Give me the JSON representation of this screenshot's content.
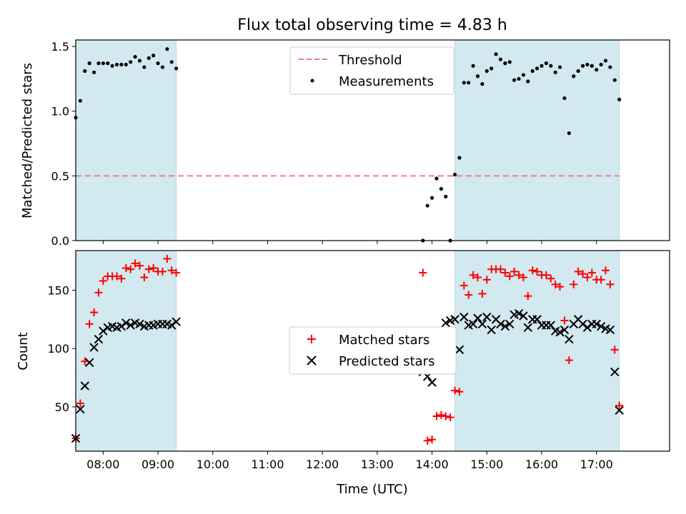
{
  "chart_data": {
    "title": "Flux total observing time = 4.83 h",
    "xlabel": "Time (UTC)",
    "x_ticks": [
      "08:00",
      "09:00",
      "10:00",
      "11:00",
      "12:00",
      "13:00",
      "14:00",
      "15:00",
      "16:00",
      "17:00"
    ],
    "x_range": [
      "07:30",
      "18:20"
    ],
    "shaded_intervals": [
      [
        "07:30",
        "09:20"
      ],
      [
        "14:25",
        "17:25"
      ]
    ],
    "shade_color": "#d2e9ef",
    "panels": [
      {
        "type": "scatter",
        "ylabel": "Matched/Predicted stars",
        "ylim": [
          0,
          1.55
        ],
        "y_ticks": [
          "0.0",
          "0.5",
          "1.0",
          "1.5"
        ],
        "legend_position": "top-center",
        "threshold": {
          "name": "Threshold",
          "value": 0.5,
          "range": [
            "07:30",
            "17:25"
          ],
          "color": "#f08080"
        },
        "series": [
          {
            "name": "Measurements",
            "color": "#000000",
            "marker": "dot",
            "points": [
              [
                "07:30",
                0.95
              ],
              [
                "07:35",
                1.08
              ],
              [
                "07:40",
                1.31
              ],
              [
                "07:45",
                1.37
              ],
              [
                "07:50",
                1.3
              ],
              [
                "07:55",
                1.37
              ],
              [
                "08:00",
                1.37
              ],
              [
                "08:05",
                1.37
              ],
              [
                "08:10",
                1.35
              ],
              [
                "08:15",
                1.36
              ],
              [
                "08:20",
                1.36
              ],
              [
                "08:25",
                1.36
              ],
              [
                "08:30",
                1.38
              ],
              [
                "08:35",
                1.42
              ],
              [
                "08:40",
                1.39
              ],
              [
                "08:45",
                1.34
              ],
              [
                "08:50",
                1.41
              ],
              [
                "08:55",
                1.43
              ],
              [
                "09:00",
                1.37
              ],
              [
                "09:05",
                1.34
              ],
              [
                "09:10",
                1.48
              ],
              [
                "09:15",
                1.38
              ],
              [
                "09:20",
                1.33
              ],
              [
                "13:50",
                0.0
              ],
              [
                "13:55",
                0.27
              ],
              [
                "14:00",
                0.33
              ],
              [
                "14:05",
                0.48
              ],
              [
                "14:10",
                0.4
              ],
              [
                "14:15",
                0.34
              ],
              [
                "14:20",
                0.0
              ],
              [
                "14:25",
                0.51
              ],
              [
                "14:30",
                0.64
              ],
              [
                "14:35",
                1.22
              ],
              [
                "14:40",
                1.22
              ],
              [
                "14:45",
                1.35
              ],
              [
                "14:50",
                1.27
              ],
              [
                "14:55",
                1.21
              ],
              [
                "15:00",
                1.31
              ],
              [
                "15:05",
                1.33
              ],
              [
                "15:10",
                1.44
              ],
              [
                "15:15",
                1.4
              ],
              [
                "15:20",
                1.37
              ],
              [
                "15:25",
                1.38
              ],
              [
                "15:30",
                1.24
              ],
              [
                "15:35",
                1.25
              ],
              [
                "15:40",
                1.28
              ],
              [
                "15:45",
                1.23
              ],
              [
                "15:50",
                1.31
              ],
              [
                "15:55",
                1.33
              ],
              [
                "16:00",
                1.35
              ],
              [
                "16:05",
                1.37
              ],
              [
                "16:10",
                1.35
              ],
              [
                "16:15",
                1.3
              ],
              [
                "16:20",
                1.34
              ],
              [
                "16:25",
                1.1
              ],
              [
                "16:30",
                0.83
              ],
              [
                "16:35",
                1.27
              ],
              [
                "16:40",
                1.31
              ],
              [
                "16:45",
                1.35
              ],
              [
                "16:50",
                1.36
              ],
              [
                "16:55",
                1.35
              ],
              [
                "17:00",
                1.32
              ],
              [
                "17:05",
                1.36
              ],
              [
                "17:10",
                1.39
              ],
              [
                "17:15",
                1.34
              ],
              [
                "17:20",
                1.24
              ],
              [
                "17:25",
                1.09
              ]
            ]
          }
        ]
      },
      {
        "type": "scatter",
        "ylabel": "Count",
        "ylim": [
          12,
          184
        ],
        "y_ticks": [
          "50",
          "100",
          "150"
        ],
        "legend_position": "center",
        "series": [
          {
            "name": "Matched stars",
            "color": "#ff0000",
            "marker": "plus",
            "points": [
              [
                "07:30",
                23
              ],
              [
                "07:35",
                53
              ],
              [
                "07:40",
                89
              ],
              [
                "07:45",
                121
              ],
              [
                "07:50",
                131
              ],
              [
                "07:55",
                148
              ],
              [
                "08:00",
                158
              ],
              [
                "08:05",
                162
              ],
              [
                "08:10",
                162
              ],
              [
                "08:15",
                162
              ],
              [
                "08:20",
                160
              ],
              [
                "08:25",
                169
              ],
              [
                "08:30",
                168
              ],
              [
                "08:35",
                173
              ],
              [
                "08:40",
                171
              ],
              [
                "08:45",
                161
              ],
              [
                "08:50",
                168
              ],
              [
                "08:55",
                169
              ],
              [
                "09:00",
                166
              ],
              [
                "09:05",
                166
              ],
              [
                "09:10",
                177
              ],
              [
                "09:15",
                167
              ],
              [
                "09:20",
                165
              ],
              [
                "13:50",
                165
              ],
              [
                "13:55",
                21
              ],
              [
                "14:00",
                22
              ],
              [
                "14:05",
                42
              ],
              [
                "14:10",
                43
              ],
              [
                "14:15",
                42
              ],
              [
                "14:20",
                41
              ],
              [
                "14:25",
                64
              ],
              [
                "14:30",
                63
              ],
              [
                "14:35",
                154
              ],
              [
                "14:40",
                146
              ],
              [
                "14:45",
                163
              ],
              [
                "14:50",
                161
              ],
              [
                "14:55",
                147
              ],
              [
                "15:00",
                159
              ],
              [
                "15:05",
                168
              ],
              [
                "15:10",
                168
              ],
              [
                "15:15",
                168
              ],
              [
                "15:20",
                165
              ],
              [
                "15:25",
                162
              ],
              [
                "15:30",
                166
              ],
              [
                "15:35",
                163
              ],
              [
                "15:40",
                161
              ],
              [
                "15:45",
                145
              ],
              [
                "15:50",
                167
              ],
              [
                "15:55",
                166
              ],
              [
                "16:00",
                163
              ],
              [
                "16:05",
                163
              ],
              [
                "16:10",
                160
              ],
              [
                "16:15",
                155
              ],
              [
                "16:20",
                153
              ],
              [
                "16:25",
                124
              ],
              [
                "16:30",
                90
              ],
              [
                "16:35",
                155
              ],
              [
                "16:40",
                166
              ],
              [
                "16:45",
                164
              ],
              [
                "16:50",
                161
              ],
              [
                "16:55",
                165
              ],
              [
                "17:00",
                159
              ],
              [
                "17:05",
                159
              ],
              [
                "17:10",
                167
              ],
              [
                "17:15",
                155
              ],
              [
                "17:20",
                99
              ],
              [
                "17:25",
                51
              ]
            ]
          },
          {
            "name": "Predicted stars",
            "color": "#000000",
            "marker": "x",
            "points": [
              [
                "07:30",
                23
              ],
              [
                "07:35",
                48
              ],
              [
                "07:40",
                68
              ],
              [
                "07:45",
                88
              ],
              [
                "07:50",
                101
              ],
              [
                "07:55",
                108
              ],
              [
                "08:00",
                115
              ],
              [
                "08:05",
                118
              ],
              [
                "08:10",
                119
              ],
              [
                "08:15",
                118
              ],
              [
                "08:20",
                119
              ],
              [
                "08:25",
                122
              ],
              [
                "08:30",
                120
              ],
              [
                "08:35",
                122
              ],
              [
                "08:40",
                121
              ],
              [
                "08:45",
                119
              ],
              [
                "08:50",
                120
              ],
              [
                "08:55",
                120
              ],
              [
                "09:00",
                121
              ],
              [
                "09:05",
                121
              ],
              [
                "09:10",
                121
              ],
              [
                "09:15",
                120
              ],
              [
                "09:20",
                123
              ],
              [
                "13:50",
                80
              ],
              [
                "13:55",
                76
              ],
              [
                "14:00",
                71
              ],
              [
                "14:05",
                87
              ],
              [
                "14:10",
                111
              ],
              [
                "14:15",
                122
              ],
              [
                "14:20",
                124
              ],
              [
                "14:25",
                125
              ],
              [
                "14:30",
                99
              ],
              [
                "14:35",
                127
              ],
              [
                "14:40",
                120
              ],
              [
                "14:45",
                121
              ],
              [
                "14:50",
                126
              ],
              [
                "14:55",
                121
              ],
              [
                "15:00",
                127
              ],
              [
                "15:05",
                116
              ],
              [
                "15:10",
                125
              ],
              [
                "15:15",
                121
              ],
              [
                "15:20",
                119
              ],
              [
                "15:25",
                121
              ],
              [
                "15:30",
                129
              ],
              [
                "15:35",
                130
              ],
              [
                "15:40",
                128
              ],
              [
                "15:45",
                118
              ],
              [
                "15:50",
                125
              ],
              [
                "15:55",
                125
              ],
              [
                "16:00",
                120
              ],
              [
                "16:05",
                120
              ],
              [
                "16:10",
                120
              ],
              [
                "16:15",
                115
              ],
              [
                "16:20",
                114
              ],
              [
                "16:25",
                116
              ],
              [
                "16:30",
                108
              ],
              [
                "16:35",
                121
              ],
              [
                "16:40",
                125
              ],
              [
                "16:45",
                121
              ],
              [
                "16:50",
                118
              ],
              [
                "16:55",
                121
              ],
              [
                "17:00",
                121
              ],
              [
                "17:05",
                119
              ],
              [
                "17:10",
                117
              ],
              [
                "17:15",
                116
              ],
              [
                "17:20",
                80
              ],
              [
                "17:25",
                47
              ]
            ]
          }
        ]
      }
    ]
  }
}
